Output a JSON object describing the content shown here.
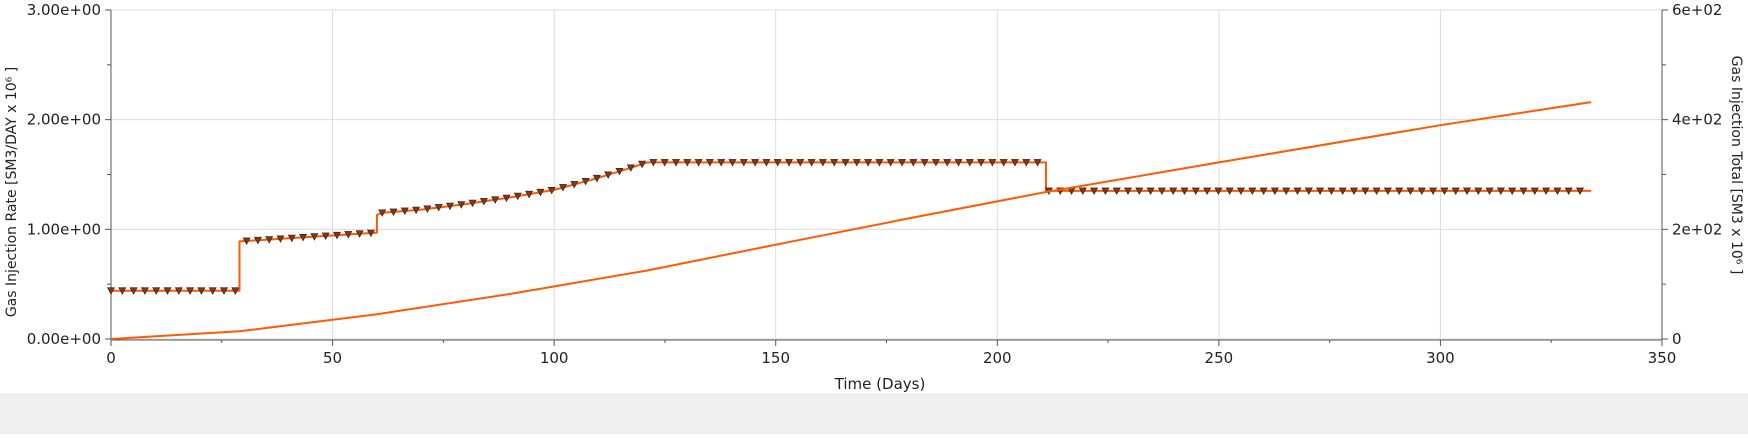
{
  "chart_data": {
    "type": "line",
    "xlabel": "Time (Days)",
    "ylabel_left": "Gas Injection Rate [SM3/DAY x 10⁶ ]",
    "ylabel_right": "Gas Injection Total [SM3 x 10⁶ ]",
    "xlim": [
      0,
      350
    ],
    "ylim_left": [
      0,
      3
    ],
    "ylim_right": [
      0,
      600
    ],
    "x_ticks": [
      "0",
      "50",
      "100",
      "150",
      "200",
      "250",
      "300",
      "350"
    ],
    "y_ticks_left": [
      "0.00e+00",
      "1.00e+00",
      "2.00e+00",
      "3.00e+00"
    ],
    "y_ticks_right": [
      "0",
      "2e+02",
      "4e+02",
      "6e+02"
    ],
    "grid": true,
    "series": [
      {
        "axis": "left",
        "color": "#ff5a00",
        "line_style": "step",
        "marker": "down-triangle",
        "marker_color": "#7a3a20",
        "x": [
          0,
          29,
          29,
          60,
          60,
          61,
          70,
          80,
          90,
          100,
          110,
          118,
          121,
          130,
          140,
          150,
          160,
          170,
          180,
          190,
          200,
          211,
          211,
          250,
          300,
          334
        ],
        "y": [
          0.44,
          0.44,
          0.89,
          0.97,
          1.13,
          1.15,
          1.18,
          1.23,
          1.29,
          1.36,
          1.47,
          1.57,
          1.61,
          1.61,
          1.61,
          1.61,
          1.61,
          1.61,
          1.61,
          1.61,
          1.61,
          1.61,
          1.35,
          1.35,
          1.35,
          1.35
        ]
      },
      {
        "axis": "right",
        "color": "#ff5a00",
        "line_style": "line",
        "x": [
          0,
          29,
          60,
          90,
          121,
          150,
          180,
          211,
          250,
          300,
          334
        ],
        "y": [
          0,
          14,
          45,
          82,
          125,
          172,
          220,
          268,
          322,
          390,
          432
        ]
      }
    ]
  }
}
